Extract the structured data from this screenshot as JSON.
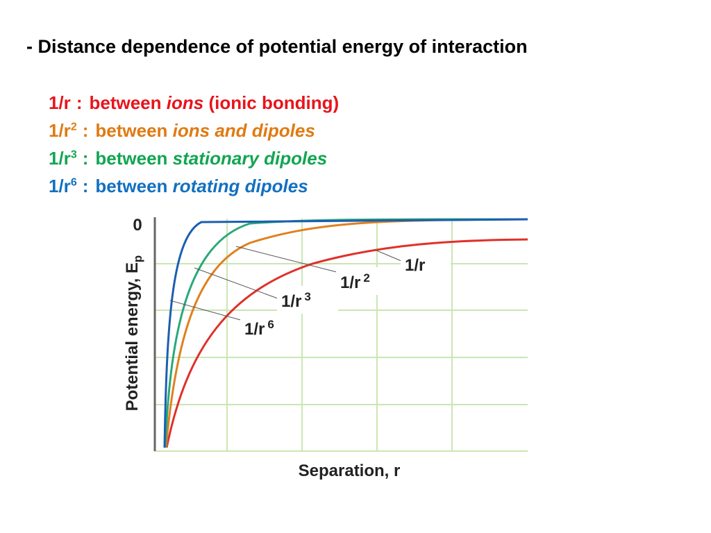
{
  "heading": "- Distance dependence of potential energy of interaction",
  "items": [
    {
      "base": "1/r",
      "separator": ":",
      "text": "between",
      "emphasis": "ions",
      "note": "(ionic bonding)",
      "color": "#e8141c"
    },
    {
      "base": "1/r",
      "power": "2",
      "separator": ":",
      "text": "between",
      "emphasis": "ions and dipoles",
      "color": "#e07a12"
    },
    {
      "base": "1/r",
      "power": "3",
      "separator": ":",
      "text": "between",
      "emphasis": "stationary dipoles",
      "color": "#12a552"
    },
    {
      "base": "1/r",
      "power": "6",
      "separator": ":",
      "text": "between",
      "emphasis": "rotating dipoles",
      "color": "#1270c0"
    }
  ],
  "figure": {
    "y_label": "Potential energy, E",
    "y_label_subscript": "p",
    "zero_label": "0",
    "x_label": "Separation, r",
    "curve_labels": [
      {
        "base": "1/r"
      },
      {
        "base": "1/r",
        "power": "2"
      },
      {
        "base": "1/r",
        "power": "3"
      },
      {
        "base": "1/r",
        "power": "6"
      }
    ]
  }
}
